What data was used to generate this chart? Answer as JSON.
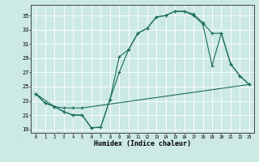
{
  "bg_color": "#cce9e4",
  "grid_color": "#ffffff",
  "line_color": "#1a6b5e",
  "xlabel": "Humidex (Indice chaleur)",
  "xlim": [
    -0.5,
    23.5
  ],
  "ylim": [
    18.5,
    36.5
  ],
  "xticks": [
    0,
    1,
    2,
    3,
    4,
    5,
    6,
    7,
    8,
    9,
    10,
    11,
    12,
    13,
    14,
    15,
    16,
    17,
    18,
    19,
    20,
    21,
    22,
    23
  ],
  "yticks": [
    19,
    21,
    23,
    25,
    27,
    29,
    31,
    33,
    35
  ],
  "line1_x": [
    0,
    1,
    2,
    3,
    4,
    5,
    6,
    7,
    8,
    9,
    10,
    11,
    12,
    13,
    14,
    15,
    16,
    17,
    18,
    19,
    20,
    21,
    22,
    23
  ],
  "line1_y": [
    24.0,
    22.7,
    22.2,
    21.5,
    21.0,
    21.0,
    19.2,
    19.3,
    23.2,
    27.0,
    30.2,
    32.5,
    33.2,
    34.8,
    35.0,
    35.6,
    35.6,
    35.2,
    34.0,
    32.5,
    32.5,
    28.2,
    26.5,
    25.3
  ],
  "line2_x": [
    0,
    1,
    2,
    3,
    4,
    5,
    6,
    7,
    8,
    9,
    10,
    11,
    12,
    13,
    14,
    15,
    16,
    17,
    18,
    19,
    20,
    21,
    22,
    23
  ],
  "line2_y": [
    24.0,
    22.7,
    22.2,
    21.5,
    21.0,
    21.0,
    19.2,
    19.3,
    23.2,
    29.2,
    30.2,
    32.5,
    33.2,
    34.8,
    35.0,
    35.6,
    35.6,
    35.0,
    33.8,
    28.0,
    32.5,
    28.2,
    26.5,
    25.3
  ],
  "line3_x": [
    0,
    2,
    3,
    4,
    5,
    23
  ],
  "line3_y": [
    24.0,
    22.2,
    22.0,
    22.0,
    22.0,
    25.3
  ]
}
